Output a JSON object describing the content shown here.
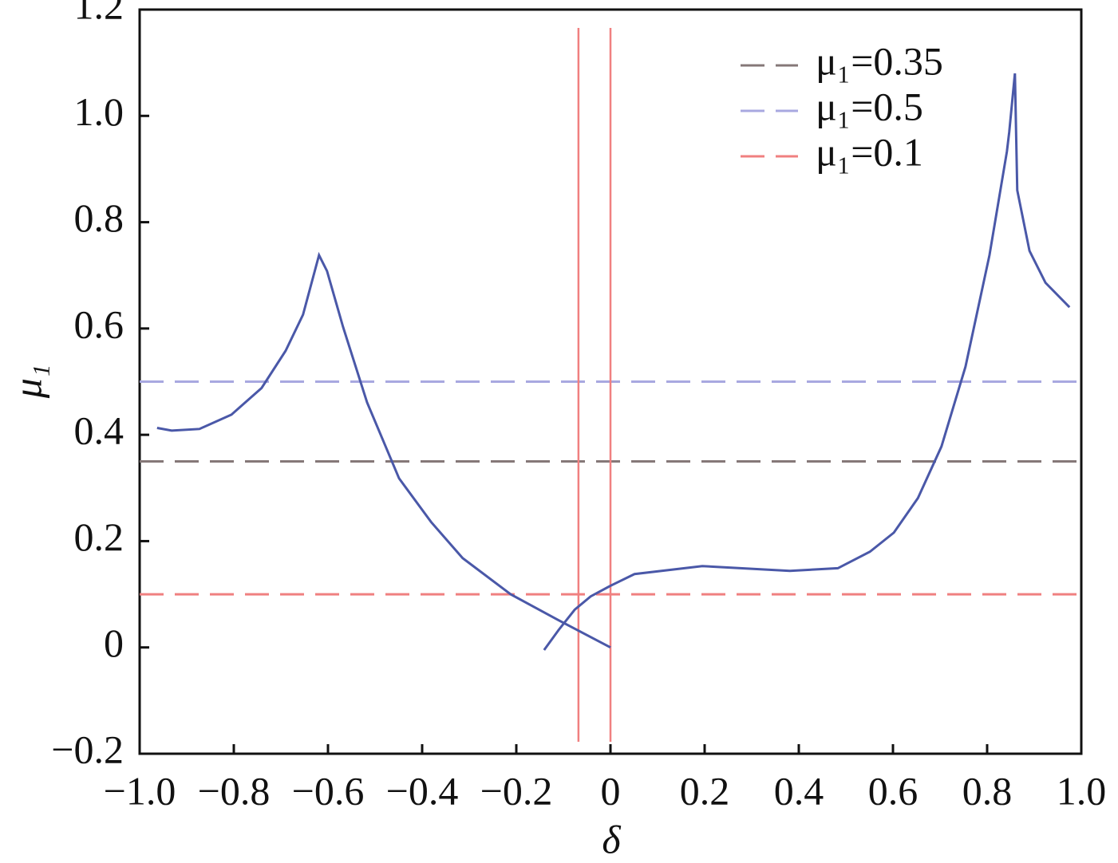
{
  "chart_data": {
    "type": "line",
    "xlabel": "δ",
    "ylabel": "μ₁",
    "xlim": [
      -1,
      1
    ],
    "ylim": [
      -0.2,
      1.2
    ],
    "xticks": [
      {
        "value": -1,
        "label": "−1.0"
      },
      {
        "value": -0.8,
        "label": "−0.8"
      },
      {
        "value": -0.6,
        "label": "−0.6"
      },
      {
        "value": -0.4,
        "label": "−0.4"
      },
      {
        "value": -0.2,
        "label": "−0.2"
      },
      0,
      0.2,
      0.4,
      0.6,
      0.8,
      {
        "value": 1,
        "label": "1.0"
      }
    ],
    "yticks": [
      {
        "value": -0.2,
        "label": "−0.2"
      },
      0,
      0.2,
      0.4,
      0.6,
      0.8,
      {
        "value": 1,
        "label": "1.0"
      },
      1.2
    ],
    "legend": "upper right",
    "hlines": [
      {
        "name": "μ₁=0.35",
        "color": "#857878",
        "value": 0.35
      },
      {
        "name": "μ₁=0.5",
        "color": "#a8a8e0",
        "value": 0.5
      },
      {
        "name": "μ₁=0.1",
        "color": "#f08080",
        "value": 0.1
      }
    ],
    "vlines": {
      "color": "#f08080",
      "x": [
        -0.068,
        0
      ]
    },
    "curves": [
      {
        "color": "#4a58a8",
        "x": [
          -0.963,
          -0.932,
          -0.873,
          -0.805,
          -0.741,
          -0.69,
          -0.653,
          -0.619,
          -0.602,
          -0.568,
          -0.517,
          -0.449,
          -0.381,
          -0.314,
          -0.212,
          -0.11,
          0
        ],
        "values": [
          0.413,
          0.408,
          0.411,
          0.438,
          0.488,
          0.558,
          0.626,
          0.738,
          0.708,
          0.603,
          0.461,
          0.318,
          0.236,
          0.168,
          0.1,
          0.051,
          0
        ]
      },
      {
        "color": "#4a58a8",
        "x": [
          -0.141,
          -0.11,
          -0.076,
          -0.042,
          0,
          0.051,
          0.195,
          0.381,
          0.483,
          0.551,
          0.602,
          0.653,
          0.703,
          0.754,
          0.805,
          0.842,
          0.847,
          0.859,
          0.864,
          0.89,
          0.924,
          0.975
        ],
        "values": [
          -0.005,
          0.033,
          0.071,
          0.096,
          0.116,
          0.138,
          0.153,
          0.144,
          0.149,
          0.18,
          0.216,
          0.281,
          0.378,
          0.528,
          0.738,
          0.933,
          0.97,
          1.08,
          0.86,
          0.746,
          0.686,
          0.64
        ]
      }
    ]
  }
}
